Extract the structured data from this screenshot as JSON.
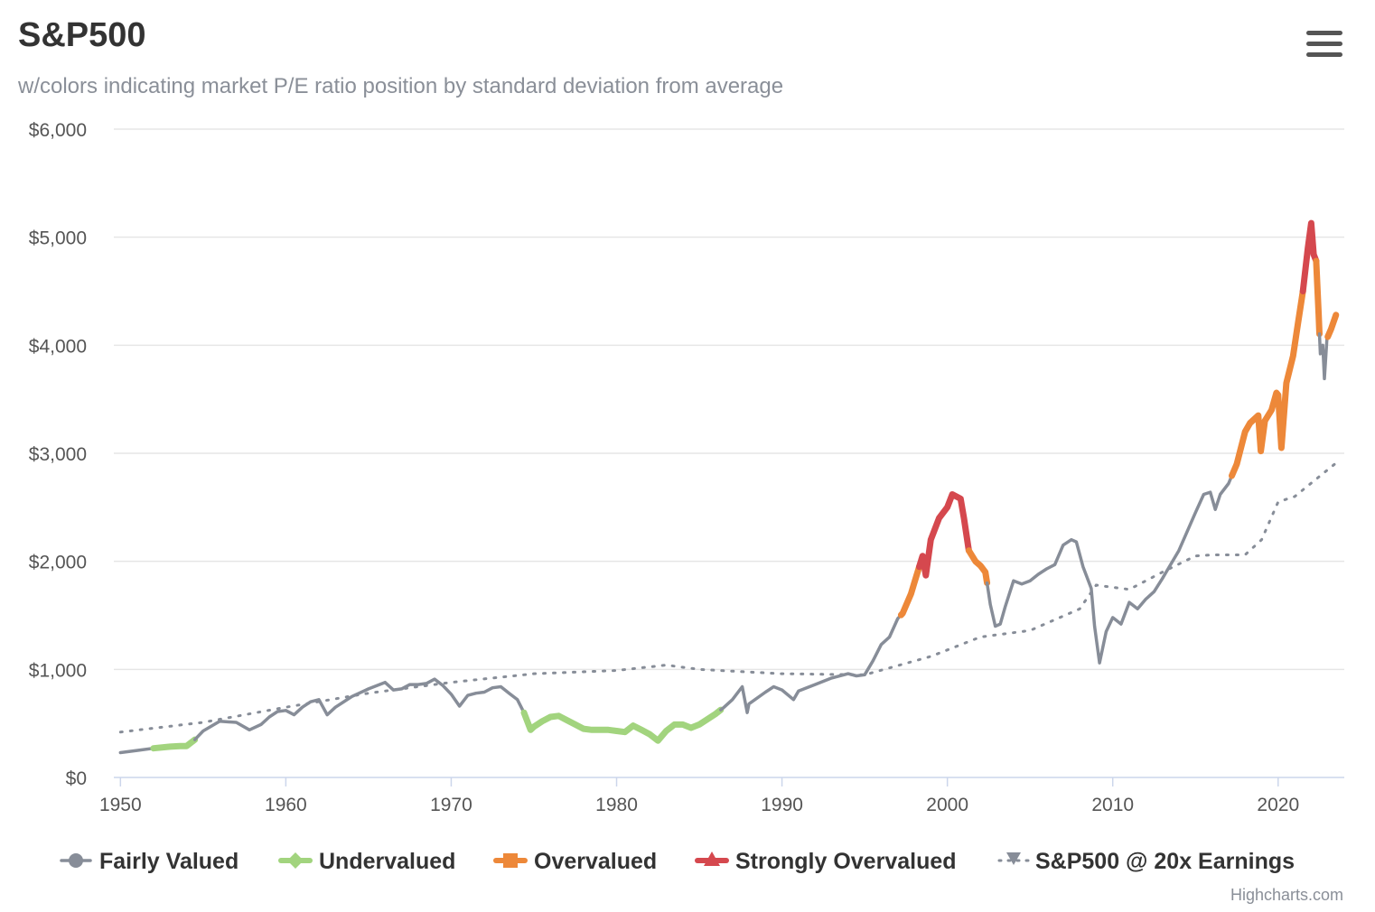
{
  "header": {
    "title": "S&P500",
    "subtitle": "w/colors indicating market P/E ratio position by standard deviation from average",
    "menu_icon": "hamburger-menu-icon"
  },
  "credits": "Highcharts.com",
  "chart_data": {
    "type": "line",
    "title": "S&P500",
    "subtitle": "w/colors indicating market P/E ratio position by standard deviation from average",
    "xlabel": "",
    "ylabel": "",
    "xlim": [
      1949.6,
      2024.0
    ],
    "ylim": [
      0,
      6000
    ],
    "x_ticks": [
      1950,
      1960,
      1970,
      1980,
      1990,
      2000,
      2010,
      2020
    ],
    "x_tick_labels": [
      "1950",
      "1960",
      "1970",
      "1980",
      "1990",
      "2000",
      "2010",
      "2020"
    ],
    "y_ticks": [
      0,
      1000,
      2000,
      3000,
      4000,
      5000,
      6000
    ],
    "y_tick_labels": [
      "$0",
      "$1,000",
      "$2,000",
      "$3,000",
      "$4,000",
      "$5,000",
      "$6,000"
    ],
    "grid": true,
    "legend_position": "bottom",
    "price_points": [
      [
        1950.0,
        230
      ],
      [
        1951.0,
        250
      ],
      [
        1952.0,
        270
      ],
      [
        1953.0,
        285
      ],
      [
        1953.6,
        290
      ],
      [
        1954.0,
        290
      ],
      [
        1954.5,
        350
      ],
      [
        1955.0,
        430
      ],
      [
        1956.0,
        520
      ],
      [
        1957.0,
        510
      ],
      [
        1957.8,
        440
      ],
      [
        1958.5,
        490
      ],
      [
        1959.0,
        560
      ],
      [
        1959.5,
        610
      ],
      [
        1960.0,
        620
      ],
      [
        1960.5,
        580
      ],
      [
        1961.0,
        650
      ],
      [
        1961.5,
        700
      ],
      [
        1962.0,
        720
      ],
      [
        1962.5,
        580
      ],
      [
        1963.0,
        650
      ],
      [
        1964.0,
        750
      ],
      [
        1965.0,
        820
      ],
      [
        1966.0,
        880
      ],
      [
        1966.5,
        810
      ],
      [
        1967.0,
        820
      ],
      [
        1967.5,
        860
      ],
      [
        1968.0,
        860
      ],
      [
        1968.5,
        870
      ],
      [
        1969.0,
        910
      ],
      [
        1969.5,
        850
      ],
      [
        1970.0,
        770
      ],
      [
        1970.5,
        660
      ],
      [
        1971.0,
        760
      ],
      [
        1971.5,
        780
      ],
      [
        1972.0,
        790
      ],
      [
        1972.5,
        830
      ],
      [
        1973.0,
        840
      ],
      [
        1973.5,
        780
      ],
      [
        1974.0,
        720
      ],
      [
        1974.4,
        600
      ],
      [
        1974.8,
        440
      ],
      [
        1975.0,
        470
      ],
      [
        1975.5,
        520
      ],
      [
        1976.0,
        560
      ],
      [
        1976.5,
        570
      ],
      [
        1977.0,
        530
      ],
      [
        1977.5,
        490
      ],
      [
        1978.0,
        450
      ],
      [
        1978.5,
        440
      ],
      [
        1979.0,
        440
      ],
      [
        1979.5,
        440
      ],
      [
        1980.0,
        430
      ],
      [
        1980.5,
        420
      ],
      [
        1981.0,
        480
      ],
      [
        1981.5,
        440
      ],
      [
        1982.0,
        400
      ],
      [
        1982.5,
        340
      ],
      [
        1983.0,
        430
      ],
      [
        1983.5,
        490
      ],
      [
        1984.0,
        490
      ],
      [
        1984.5,
        460
      ],
      [
        1985.0,
        490
      ],
      [
        1985.5,
        540
      ],
      [
        1986.0,
        590
      ],
      [
        1986.5,
        650
      ],
      [
        1987.0,
        720
      ],
      [
        1987.6,
        840
      ],
      [
        1987.9,
        600
      ],
      [
        1988.0,
        680
      ],
      [
        1989.0,
        790
      ],
      [
        1989.5,
        840
      ],
      [
        1990.0,
        810
      ],
      [
        1990.7,
        720
      ],
      [
        1991.0,
        800
      ],
      [
        1992.0,
        860
      ],
      [
        1993.0,
        920
      ],
      [
        1994.0,
        960
      ],
      [
        1994.5,
        940
      ],
      [
        1995.0,
        950
      ],
      [
        1995.5,
        1080
      ],
      [
        1996.0,
        1230
      ],
      [
        1996.5,
        1300
      ],
      [
        1997.0,
        1470
      ],
      [
        1997.3,
        1520
      ],
      [
        1997.8,
        1700
      ],
      [
        1998.0,
        1800
      ],
      [
        1998.5,
        2050
      ],
      [
        1998.7,
        1870
      ],
      [
        1999.0,
        2200
      ],
      [
        1999.5,
        2400
      ],
      [
        2000.0,
        2500
      ],
      [
        2000.3,
        2620
      ],
      [
        2000.8,
        2580
      ],
      [
        2001.0,
        2400
      ],
      [
        2001.3,
        2100
      ],
      [
        2001.7,
        2000
      ],
      [
        2002.0,
        1960
      ],
      [
        2002.3,
        1900
      ],
      [
        2002.6,
        1600
      ],
      [
        2002.9,
        1400
      ],
      [
        2003.2,
        1420
      ],
      [
        2003.5,
        1580
      ],
      [
        2004.0,
        1820
      ],
      [
        2004.5,
        1790
      ],
      [
        2005.0,
        1820
      ],
      [
        2005.5,
        1880
      ],
      [
        2006.0,
        1930
      ],
      [
        2006.5,
        1970
      ],
      [
        2007.0,
        2150
      ],
      [
        2007.5,
        2200
      ],
      [
        2007.8,
        2180
      ],
      [
        2008.2,
        1950
      ],
      [
        2008.7,
        1750
      ],
      [
        2008.9,
        1400
      ],
      [
        2009.2,
        1060
      ],
      [
        2009.6,
        1350
      ],
      [
        2010.0,
        1480
      ],
      [
        2010.5,
        1420
      ],
      [
        2011.0,
        1620
      ],
      [
        2011.5,
        1560
      ],
      [
        2012.0,
        1650
      ],
      [
        2012.5,
        1720
      ],
      [
        2013.0,
        1840
      ],
      [
        2014.0,
        2100
      ],
      [
        2015.0,
        2450
      ],
      [
        2015.5,
        2620
      ],
      [
        2015.9,
        2640
      ],
      [
        2016.2,
        2480
      ],
      [
        2016.5,
        2620
      ],
      [
        2017.0,
        2720
      ],
      [
        2017.5,
        2900
      ],
      [
        2018.0,
        3200
      ],
      [
        2018.3,
        3280
      ],
      [
        2018.8,
        3350
      ],
      [
        2018.95,
        3020
      ],
      [
        2019.2,
        3300
      ],
      [
        2019.6,
        3400
      ],
      [
        2019.9,
        3560
      ],
      [
        2020.0,
        3540
      ],
      [
        2020.2,
        3050
      ],
      [
        2020.5,
        3650
      ],
      [
        2020.9,
        3900
      ],
      [
        2021.2,
        4200
      ],
      [
        2021.5,
        4500
      ],
      [
        2021.8,
        4900
      ],
      [
        2022.0,
        5130
      ],
      [
        2022.15,
        4840
      ],
      [
        2022.3,
        4780
      ],
      [
        2022.45,
        4290
      ],
      [
        2022.55,
        3920
      ],
      [
        2022.7,
        4000
      ],
      [
        2022.8,
        3690
      ],
      [
        2022.95,
        4060
      ],
      [
        2023.2,
        4150
      ],
      [
        2023.5,
        4280
      ]
    ],
    "valuation_breaks": [
      1952.0,
      1954.5,
      1974.4,
      1986.3,
      1997.2,
      1998.3,
      2001.3,
      2002.4,
      2017.2,
      2021.5,
      2022.3,
      2022.5,
      2023.0
    ],
    "valuation_after_break": [
      "fair",
      "undervalued",
      "fair",
      "undervalued",
      "fair",
      "overvalued",
      "strongly_overvalued",
      "overvalued",
      "fair",
      "overvalued",
      "strongly_overvalued",
      "overvalued",
      "fair",
      "overvalued"
    ],
    "earnings_20x": [
      [
        1950.0,
        420
      ],
      [
        1955.0,
        510
      ],
      [
        1960.0,
        650
      ],
      [
        1965.0,
        780
      ],
      [
        1970.0,
        880
      ],
      [
        1975.0,
        960
      ],
      [
        1980.0,
        990
      ],
      [
        1983.0,
        1040
      ],
      [
        1985.0,
        1000
      ],
      [
        1990.0,
        960
      ],
      [
        1995.0,
        950
      ],
      [
        1999.0,
        1120
      ],
      [
        2002.0,
        1300
      ],
      [
        2005.0,
        1360
      ],
      [
        2008.0,
        1560
      ],
      [
        2009.0,
        1780
      ],
      [
        2011.0,
        1740
      ],
      [
        2013.0,
        1900
      ],
      [
        2015.0,
        2050
      ],
      [
        2016.0,
        2060
      ],
      [
        2018.0,
        2060
      ],
      [
        2019.0,
        2200
      ],
      [
        2020.0,
        2550
      ],
      [
        2021.0,
        2600
      ],
      [
        2023.5,
        2910
      ]
    ],
    "series": [
      {
        "key": "fair",
        "name": "Fairly Valued",
        "color": "#878d98",
        "marker": "circle-icon"
      },
      {
        "key": "undervalued",
        "name": "Undervalued",
        "color": "#a2d47e",
        "marker": "diamond-icon"
      },
      {
        "key": "overvalued",
        "name": "Overvalued",
        "color": "#ed8839",
        "marker": "square-icon"
      },
      {
        "key": "strongly_overvalued",
        "name": "Strongly Overvalued",
        "color": "#d5484e",
        "marker": "triangle-icon"
      },
      {
        "key": "earnings",
        "name": "S&P500 @ 20x Earnings",
        "color": "#878d98",
        "marker": "triangle-down-icon"
      }
    ]
  }
}
